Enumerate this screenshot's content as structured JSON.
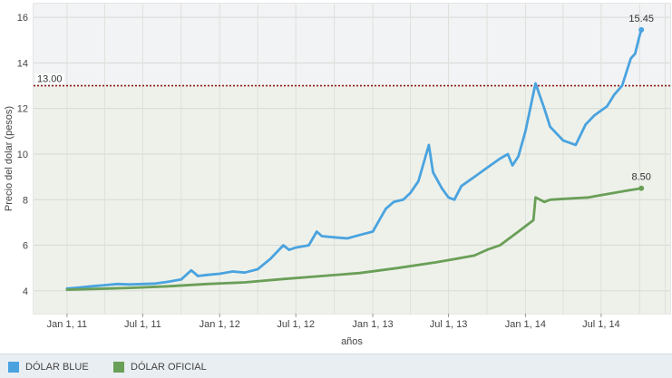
{
  "chart_data": {
    "type": "line",
    "xlabel": "años",
    "ylabel": "Precio del dolar (pesos)",
    "ylim": [
      3,
      16.6
    ],
    "x_ticks": [
      "Jan 1, 11",
      "Jul 1, 11",
      "Jan 1, 12",
      "Jul 1, 12",
      "Jan 1, 13",
      "Jul 1, 13",
      "Jan 1, 14",
      "Jul 1, 14"
    ],
    "y_ticks": [
      4,
      6,
      8,
      10,
      12,
      14,
      16
    ],
    "reference_line": {
      "value": 13.0,
      "label": "13.00",
      "color": "#8b1a1a"
    },
    "grid": true,
    "legend_position": "bottom",
    "series": [
      {
        "name": "DÓLAR BLUE",
        "color": "#4aa3df",
        "end_label": "15.45",
        "points": [
          [
            "2011-01-01",
            4.1
          ],
          [
            "2011-02-01",
            4.15
          ],
          [
            "2011-03-01",
            4.2
          ],
          [
            "2011-04-01",
            4.25
          ],
          [
            "2011-05-01",
            4.3
          ],
          [
            "2011-06-01",
            4.28
          ],
          [
            "2011-07-01",
            4.3
          ],
          [
            "2011-08-01",
            4.32
          ],
          [
            "2011-09-01",
            4.4
          ],
          [
            "2011-10-01",
            4.5
          ],
          [
            "2011-10-25",
            4.9
          ],
          [
            "2011-11-10",
            4.65
          ],
          [
            "2011-12-01",
            4.7
          ],
          [
            "2012-01-01",
            4.75
          ],
          [
            "2012-02-01",
            4.85
          ],
          [
            "2012-03-01",
            4.8
          ],
          [
            "2012-04-01",
            4.95
          ],
          [
            "2012-05-01",
            5.4
          ],
          [
            "2012-06-01",
            6.0
          ],
          [
            "2012-06-15",
            5.8
          ],
          [
            "2012-07-01",
            5.9
          ],
          [
            "2012-08-01",
            6.0
          ],
          [
            "2012-08-20",
            6.6
          ],
          [
            "2012-09-01",
            6.4
          ],
          [
            "2012-10-01",
            6.35
          ],
          [
            "2012-11-01",
            6.3
          ],
          [
            "2012-12-01",
            6.45
          ],
          [
            "2013-01-01",
            6.6
          ],
          [
            "2013-02-01",
            7.6
          ],
          [
            "2013-02-20",
            7.9
          ],
          [
            "2013-03-15",
            8.0
          ],
          [
            "2013-04-01",
            8.3
          ],
          [
            "2013-04-20",
            8.8
          ],
          [
            "2013-05-15",
            10.4
          ],
          [
            "2013-05-25",
            9.2
          ],
          [
            "2013-06-15",
            8.5
          ],
          [
            "2013-07-01",
            8.1
          ],
          [
            "2013-07-15",
            8.0
          ],
          [
            "2013-08-01",
            8.6
          ],
          [
            "2013-09-01",
            9.0
          ],
          [
            "2013-10-01",
            9.4
          ],
          [
            "2013-11-01",
            9.8
          ],
          [
            "2013-11-20",
            10.0
          ],
          [
            "2013-12-01",
            9.5
          ],
          [
            "2013-12-15",
            9.9
          ],
          [
            "2014-01-01",
            11.0
          ],
          [
            "2014-01-25",
            13.1
          ],
          [
            "2014-02-15",
            12.0
          ],
          [
            "2014-03-01",
            11.2
          ],
          [
            "2014-04-01",
            10.6
          ],
          [
            "2014-05-01",
            10.4
          ],
          [
            "2014-05-25",
            11.3
          ],
          [
            "2014-06-15",
            11.7
          ],
          [
            "2014-07-15",
            12.1
          ],
          [
            "2014-08-01",
            12.6
          ],
          [
            "2014-08-20",
            13.0
          ],
          [
            "2014-09-10",
            14.2
          ],
          [
            "2014-09-20",
            14.4
          ],
          [
            "2014-10-01",
            15.2
          ],
          [
            "2014-10-05",
            15.45
          ]
        ]
      },
      {
        "name": "DÓLAR OFICIAL",
        "color": "#6a9f58",
        "end_label": "8.50",
        "points": [
          [
            "2011-01-01",
            4.05
          ],
          [
            "2011-06-01",
            4.13
          ],
          [
            "2011-09-01",
            4.2
          ],
          [
            "2011-12-01",
            4.3
          ],
          [
            "2012-03-01",
            4.37
          ],
          [
            "2012-06-01",
            4.52
          ],
          [
            "2012-09-01",
            4.65
          ],
          [
            "2012-12-01",
            4.78
          ],
          [
            "2013-03-01",
            5.0
          ],
          [
            "2013-06-01",
            5.25
          ],
          [
            "2013-09-01",
            5.55
          ],
          [
            "2013-10-01",
            5.8
          ],
          [
            "2013-11-01",
            6.0
          ],
          [
            "2013-12-15",
            6.6
          ],
          [
            "2014-01-20",
            7.1
          ],
          [
            "2014-01-25",
            8.1
          ],
          [
            "2014-02-15",
            7.9
          ],
          [
            "2014-03-01",
            8.0
          ],
          [
            "2014-06-01",
            8.1
          ],
          [
            "2014-07-01",
            8.2
          ],
          [
            "2014-08-01",
            8.3
          ],
          [
            "2014-09-01",
            8.4
          ],
          [
            "2014-10-05",
            8.5
          ]
        ]
      }
    ]
  },
  "legend": [
    {
      "label": "DÓLAR BLUE",
      "color": "#4aa3df"
    },
    {
      "label": "DÓLAR OFICIAL",
      "color": "#6a9f58"
    }
  ]
}
